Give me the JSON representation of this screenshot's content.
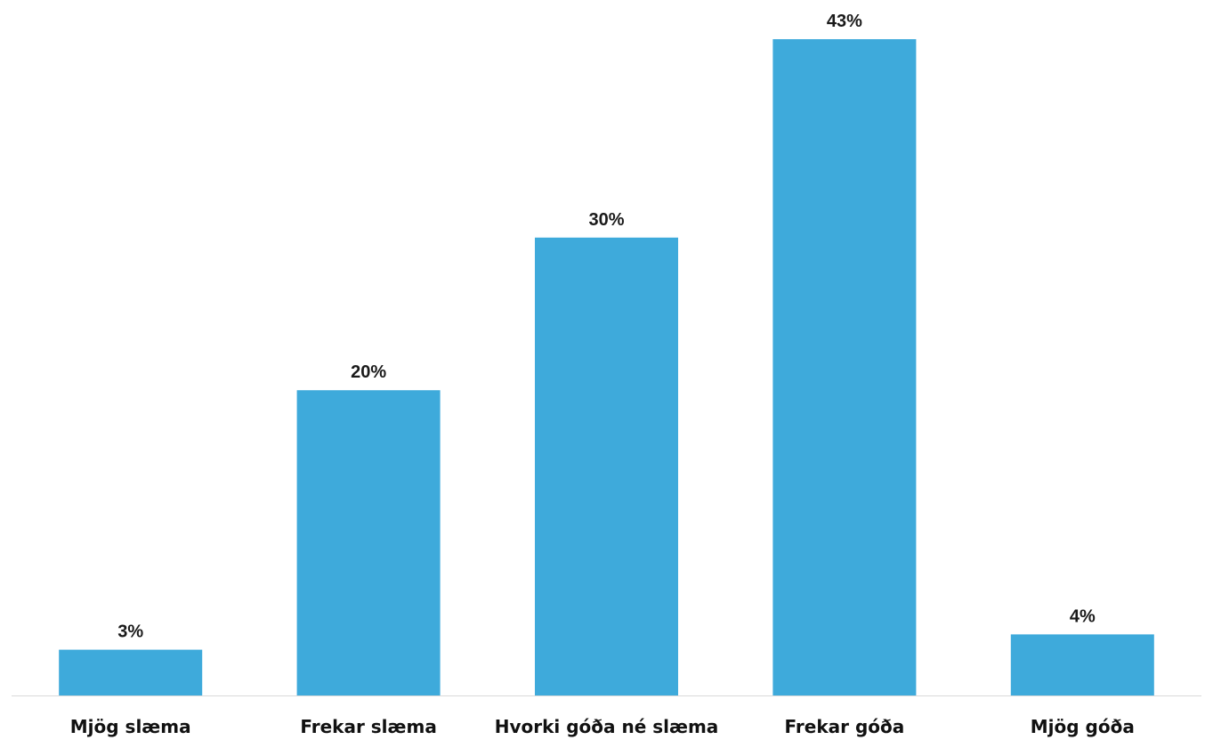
{
  "chart_data": {
    "type": "bar",
    "categories": [
      "Mjög slæma",
      "Frekar slæma",
      "Hvorki góða né slæma",
      "Frekar góða",
      "Mjög góða"
    ],
    "values": [
      3,
      20,
      30,
      43,
      4
    ],
    "value_labels": [
      "3%",
      "20%",
      "30%",
      "43%",
      "4%"
    ],
    "unit": "%",
    "ylim": [
      0,
      43
    ],
    "grid": false,
    "legend": "none",
    "colors": {
      "bar": "#3eaadb",
      "axis": "#d9d9d9"
    }
  }
}
